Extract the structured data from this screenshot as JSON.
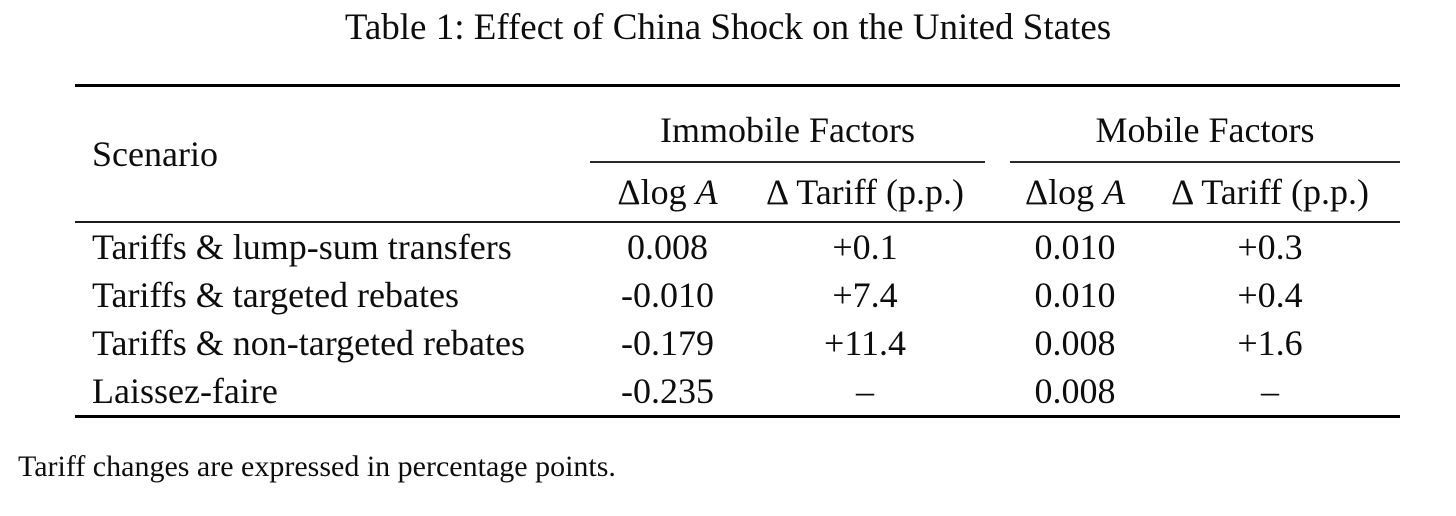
{
  "title": "Table 1: Effect of China Shock on the United States",
  "table": {
    "scenario_header": "Scenario",
    "groups": [
      {
        "label": "Immobile Factors"
      },
      {
        "label": "Mobile Factors"
      }
    ],
    "subheaders": {
      "dlog_prefix": "Δlog ",
      "dlog_var": "A",
      "dtariff": "Δ Tariff (p.p.)"
    },
    "rows": [
      {
        "scenario": "Tariffs & lump-sum transfers",
        "imm_dlogA": "0.008",
        "imm_dtariff": "+0.1",
        "mob_dlogA": "0.010",
        "mob_dtariff": "+0.3"
      },
      {
        "scenario": "Tariffs & targeted rebates",
        "imm_dlogA": "-0.010",
        "imm_dtariff": "+7.4",
        "mob_dlogA": "0.010",
        "mob_dtariff": "+0.4"
      },
      {
        "scenario": "Tariffs & non-targeted rebates",
        "imm_dlogA": "-0.179",
        "imm_dtariff": "+11.4",
        "mob_dlogA": "0.008",
        "mob_dtariff": "+1.6"
      },
      {
        "scenario": "Laissez-faire",
        "imm_dlogA": "-0.235",
        "imm_dtariff": "–",
        "mob_dlogA": "0.008",
        "mob_dtariff": "–"
      }
    ]
  },
  "note": "Tariff changes are expressed in percentage points.",
  "colors": {
    "background": "#ffffff",
    "text": "#0d0d0d",
    "rule_heavy": "#000000",
    "rule_light": "#1a1a1a"
  }
}
